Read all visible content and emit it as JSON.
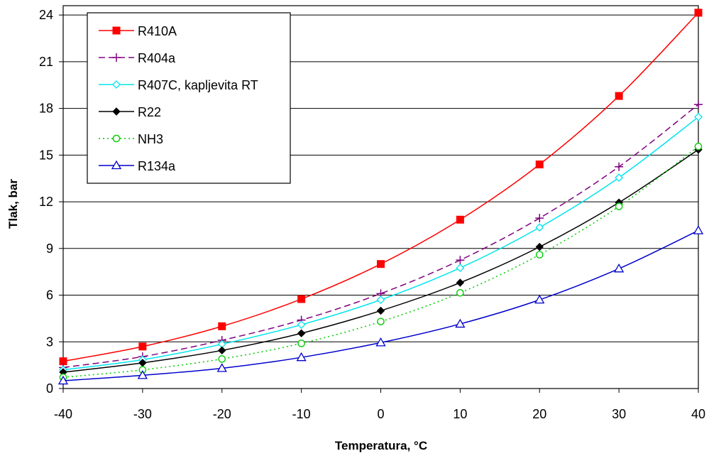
{
  "chart_data": {
    "type": "line",
    "xlabel": "Temperatura, °C",
    "ylabel": "Tlak, bar",
    "xlim": [
      -40,
      40
    ],
    "ylim": [
      0,
      24.6
    ],
    "x_ticks": [
      -40,
      -30,
      -20,
      -10,
      0,
      10,
      20,
      30,
      40
    ],
    "y_ticks": [
      0,
      3,
      6,
      9,
      12,
      15,
      18,
      21,
      24
    ],
    "grid": "horizontal",
    "legend_position": "top-left",
    "x": [
      -40,
      -30,
      -20,
      -10,
      0,
      10,
      20,
      30,
      40
    ],
    "series": [
      {
        "name": "R410A",
        "color": "#ff0000",
        "marker": "square-filled",
        "dash": "solid",
        "values": [
          1.75,
          2.7,
          4.0,
          5.75,
          8.0,
          10.85,
          14.4,
          18.8,
          24.15
        ]
      },
      {
        "name": "R404a",
        "color": "#800080",
        "marker": "plus",
        "dash": "dashed",
        "values": [
          1.35,
          2.05,
          3.1,
          4.4,
          6.1,
          8.25,
          10.95,
          14.25,
          18.25
        ]
      },
      {
        "name": "R407C, kapljevita RT",
        "color": "#00e5ee",
        "marker": "diamond-open",
        "dash": "solid",
        "values": [
          1.2,
          1.85,
          2.85,
          4.1,
          5.7,
          7.75,
          10.35,
          13.55,
          17.45
        ]
      },
      {
        "name": "R22",
        "color": "#000000",
        "marker": "diamond-filled",
        "dash": "solid",
        "values": [
          1.05,
          1.65,
          2.45,
          3.55,
          5.0,
          6.8,
          9.1,
          11.95,
          15.35
        ]
      },
      {
        "name": "NH3",
        "color": "#00cc00",
        "marker": "circle-open",
        "dash": "dotted",
        "values": [
          0.72,
          1.2,
          1.9,
          2.9,
          4.3,
          6.15,
          8.6,
          11.7,
          15.55
        ]
      },
      {
        "name": "R134a",
        "color": "#0000cc",
        "marker": "triangle-open",
        "dash": "solid",
        "values": [
          0.5,
          0.85,
          1.3,
          2.0,
          2.95,
          4.15,
          5.7,
          7.7,
          10.15
        ]
      }
    ]
  }
}
